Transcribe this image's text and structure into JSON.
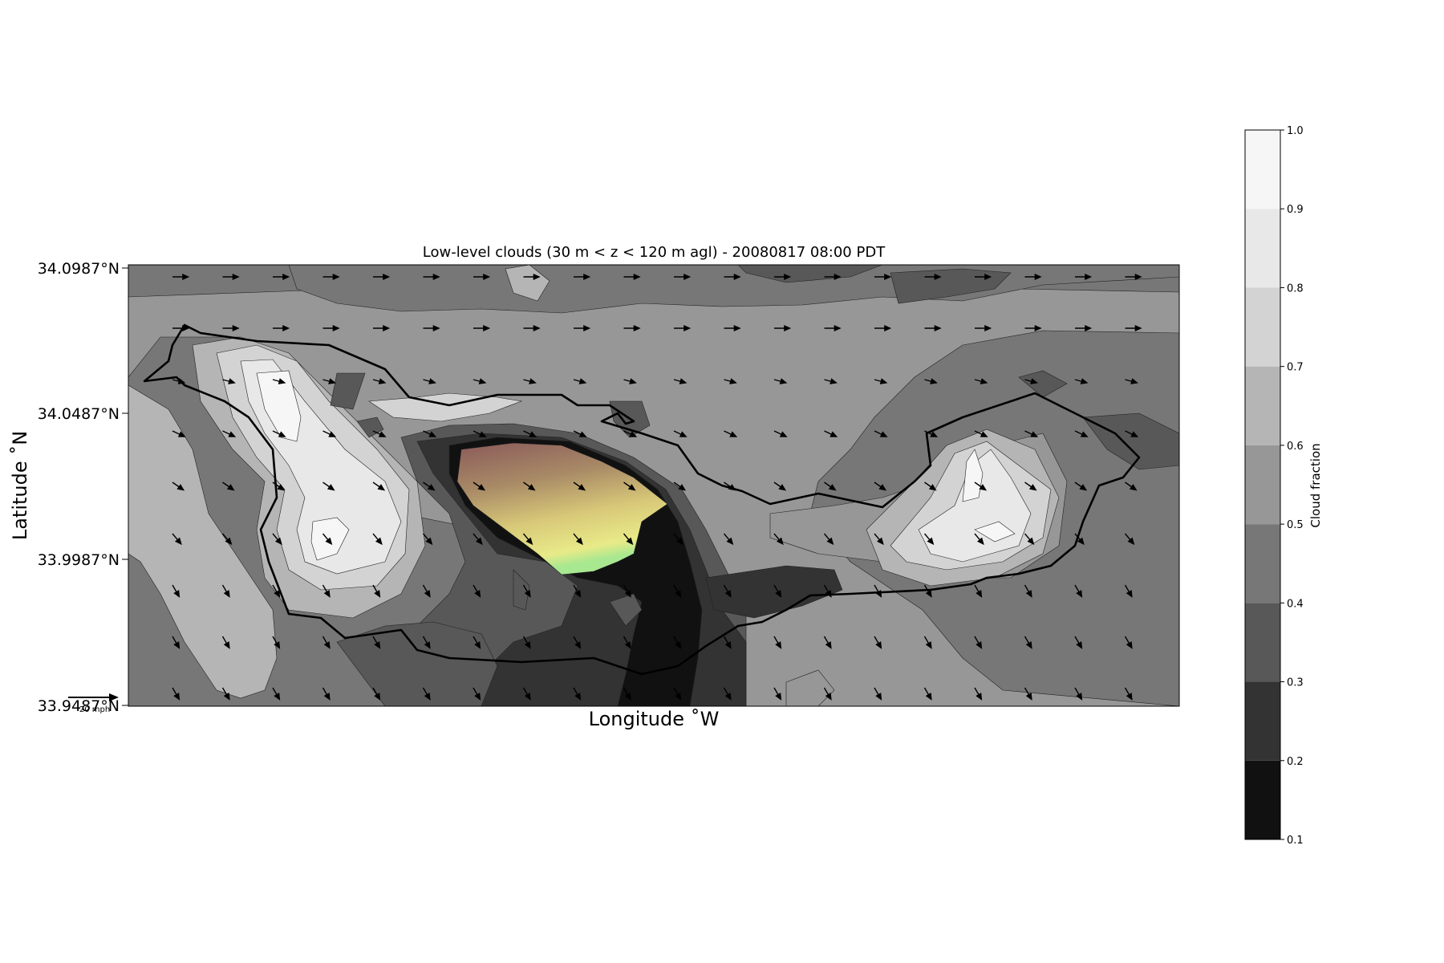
{
  "chart_data": {
    "type": "heatmap",
    "title": "Low-level clouds (30 m < z < 120 m agl) - 20080817 08:00 PDT",
    "xlabel": "Longitude $^\\circ$W",
    "xlabel_display": "Longitude ˚W",
    "ylabel_display": "Latitude ˚N",
    "y_ticks": [
      "34.0987°N",
      "34.0487°N",
      "33.9987°N",
      "33.9487°N"
    ],
    "y_tick_values": [
      34.0987,
      34.0487,
      33.9987,
      33.9487
    ],
    "ylim": [
      33.9487,
      34.0987
    ],
    "x_ticks": [],
    "colorbar": {
      "label": "Cloud fraction",
      "ticks": [
        "1.0",
        "0.9",
        "0.8",
        "0.7",
        "0.6",
        "0.5",
        "0.4",
        "0.3",
        "0.2",
        "0.1"
      ],
      "range": [
        0.1,
        1.0
      ],
      "levels": [
        {
          "from": 0.1,
          "to": 0.2,
          "color": "#111111"
        },
        {
          "from": 0.2,
          "to": 0.3,
          "color": "#333333"
        },
        {
          "from": 0.3,
          "to": 0.4,
          "color": "#585858"
        },
        {
          "from": 0.4,
          "to": 0.5,
          "color": "#777777"
        },
        {
          "from": 0.5,
          "to": 0.6,
          "color": "#979797"
        },
        {
          "from": 0.6,
          "to": 0.7,
          "color": "#b5b5b5"
        },
        {
          "from": 0.7,
          "to": 0.8,
          "color": "#d3d3d3"
        },
        {
          "from": 0.8,
          "to": 0.9,
          "color": "#e8e8e8"
        },
        {
          "from": 0.9,
          "to": 1.0,
          "color": "#f6f6f6"
        }
      ]
    },
    "wind_vectors": {
      "reference_label": "20 mph",
      "rows": [
        {
          "dir_deg": 0,
          "mag": 0.8
        },
        {
          "dir_deg": 0,
          "mag": 0.8
        },
        {
          "dir_deg": -15,
          "mag": 0.5
        },
        {
          "dir_deg": -25,
          "mag": 0.6
        },
        {
          "dir_deg": -35,
          "mag": 0.6
        },
        {
          "dir_deg": -50,
          "mag": 0.6
        },
        {
          "dir_deg": -60,
          "mag": 0.6
        },
        {
          "dir_deg": -60,
          "mag": 0.6
        },
        {
          "dir_deg": -60,
          "mag": 0.6
        }
      ]
    },
    "grid": false,
    "overlay": "terrain/coastline outline (black line) and colored elevation shading over central region"
  }
}
